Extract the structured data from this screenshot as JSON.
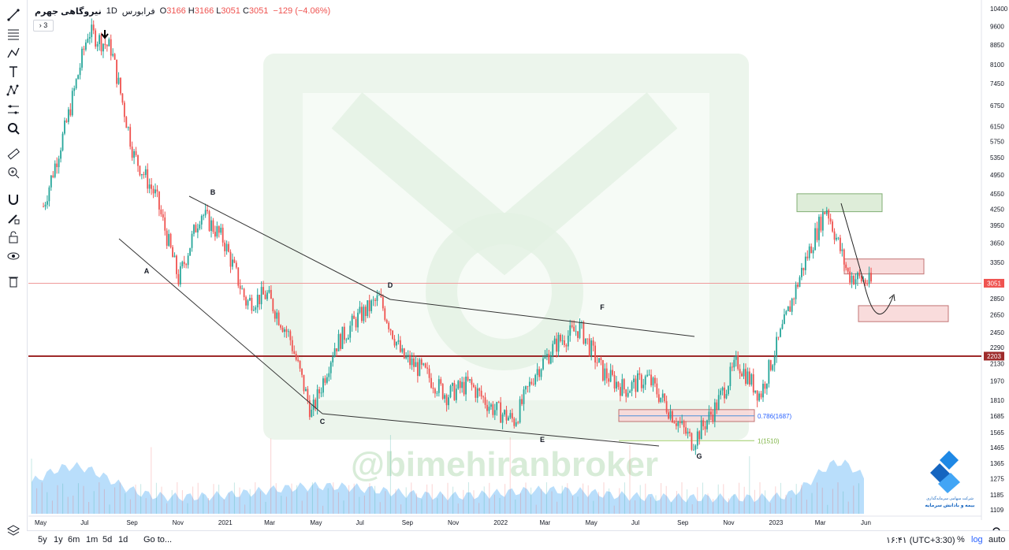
{
  "header": {
    "symbol": "نیروگاهی جهرم",
    "interval": "1D",
    "exchange": "فرابورس",
    "open_label": "O",
    "open": "3166",
    "high_label": "H",
    "high": "3166",
    "low_label": "L",
    "low": "3051",
    "close_label": "C",
    "close": "3051",
    "change": "−129 (−4.06%)",
    "indicators_toggle": "› 3"
  },
  "toolbar": {
    "icons": [
      "line-tool-icon",
      "fib-tool-icon",
      "path-tool-icon",
      "text-tool-icon",
      "pattern-tool-icon",
      "prediction-tool-icon",
      "zoom-search-icon",
      "ruler-icon",
      "zoom-in-icon",
      "magnet-icon",
      "pencil-lock-icon",
      "lock-icon",
      "eye-icon",
      "trash-icon",
      "layers-icon"
    ]
  },
  "watermark": "@bimehiranbroker",
  "logo_text": {
    "line1": "شرکت سهامی سرمایه‌گذاری",
    "line2": "بیمه و بادانش سرمایه"
  },
  "bottombar": {
    "ranges": [
      "5y",
      "1y",
      "6m",
      "1m",
      "5d",
      "1d"
    ],
    "goto": "Go to...",
    "time": "۱۶:۴۱ (UTC+3:30)",
    "percent": "%",
    "log": "log",
    "auto": "auto"
  },
  "colors": {
    "up": "#26a69a",
    "down": "#ef5350",
    "support_line": "#9e2a2a",
    "current_price_line": "#ef9a9a",
    "volume": "#64b5f6",
    "zone_red": "#f8d7d7",
    "zone_green": "#d9ead3",
    "watermark": "#e4f1e4"
  },
  "chart_data": {
    "type": "candlestick",
    "title": "",
    "price_axis": {
      "scale": "log",
      "ticks": [
        10400,
        9600,
        8850,
        8100,
        7450,
        6750,
        6150,
        5750,
        5350,
        4950,
        4550,
        4250,
        3950,
        3650,
        3350,
        2850,
        2650,
        2450,
        2290,
        2130,
        1970,
        1810,
        1685,
        1565,
        1465,
        1365,
        1275,
        1185,
        1109
      ],
      "current_price": "3051",
      "support_level": "2203",
      "range": [
        1109,
        10400
      ]
    },
    "time_axis": {
      "labels": [
        "May",
        "Jul",
        "Sep",
        "Nov",
        "2021",
        "Mar",
        "May",
        "Jul",
        "Sep",
        "Nov",
        "2022",
        "Mar",
        "May",
        "Jul",
        "Sep",
        "Nov",
        "2023",
        "Mar",
        "Jun"
      ]
    },
    "price_path": [
      {
        "date": "2020-05",
        "price": 4300
      },
      {
        "date": "2020-06",
        "price": 6200
      },
      {
        "date": "2020-07",
        "price": 9400
      },
      {
        "date": "2020-08",
        "price": 8700
      },
      {
        "date": "2020-09",
        "price": 5400
      },
      {
        "date": "2020-10",
        "price": 4500
      },
      {
        "date": "2020-11",
        "price": 3100
      },
      {
        "date": "2020-12",
        "price": 4200
      },
      {
        "date": "2021-01",
        "price": 3700
      },
      {
        "date": "2021-02",
        "price": 2800
      },
      {
        "date": "2021-03",
        "price": 2900
      },
      {
        "date": "2021-04",
        "price": 2400
      },
      {
        "date": "2021-05",
        "price": 1700
      },
      {
        "date": "2021-06",
        "price": 2300
      },
      {
        "date": "2021-07",
        "price": 2600
      },
      {
        "date": "2021-08",
        "price": 2850
      },
      {
        "date": "2021-09",
        "price": 2200
      },
      {
        "date": "2021-10",
        "price": 2050
      },
      {
        "date": "2021-11",
        "price": 1850
      },
      {
        "date": "2021-12",
        "price": 1950
      },
      {
        "date": "2022-01",
        "price": 1750
      },
      {
        "date": "2022-02",
        "price": 1650
      },
      {
        "date": "2022-03",
        "price": 2050
      },
      {
        "date": "2022-04",
        "price": 2350
      },
      {
        "date": "2022-05",
        "price": 2500
      },
      {
        "date": "2022-06",
        "price": 2050
      },
      {
        "date": "2022-07",
        "price": 1900
      },
      {
        "date": "2022-08",
        "price": 2000
      },
      {
        "date": "2022-09",
        "price": 1720
      },
      {
        "date": "2022-10",
        "price": 1500
      },
      {
        "date": "2022-11",
        "price": 1750
      },
      {
        "date": "2022-12",
        "price": 2150
      },
      {
        "date": "2023-01",
        "price": 1850
      },
      {
        "date": "2023-02",
        "price": 2500
      },
      {
        "date": "2023-03",
        "price": 3300
      },
      {
        "date": "2023-04",
        "price": 4300
      },
      {
        "date": "2023-05",
        "price": 3166
      },
      {
        "date": "2023-06",
        "price": 3051
      }
    ],
    "pattern_points": [
      {
        "label": "A",
        "date": "2020-11",
        "price": 3300
      },
      {
        "label": "B",
        "date": "2021-01",
        "price": 4500
      },
      {
        "label": "C",
        "date": "2021-06",
        "price": 1680
      },
      {
        "label": "D",
        "date": "2021-08",
        "price": 2880
      },
      {
        "label": "E",
        "date": "2022-03",
        "price": 1560
      },
      {
        "label": "F",
        "date": "2022-06",
        "price": 2550
      },
      {
        "label": "G",
        "date": "2022-10",
        "price": 1440
      }
    ],
    "fib_levels": [
      {
        "label": "0.786(1687)",
        "price": 1687
      },
      {
        "label": "1(1510)",
        "price": 1510
      }
    ],
    "zones": [
      {
        "kind": "resistance",
        "color": "green",
        "price_top": 4550,
        "price_bottom": 4200
      },
      {
        "kind": "resistance",
        "color": "red",
        "price_top": 3400,
        "price_bottom": 3180
      },
      {
        "kind": "support",
        "color": "red",
        "price_top": 2760,
        "price_bottom": 2570
      },
      {
        "kind": "support",
        "color": "red",
        "price_top": 1735,
        "price_bottom": 1645
      }
    ],
    "volume_axis": {
      "label": ""
    }
  }
}
